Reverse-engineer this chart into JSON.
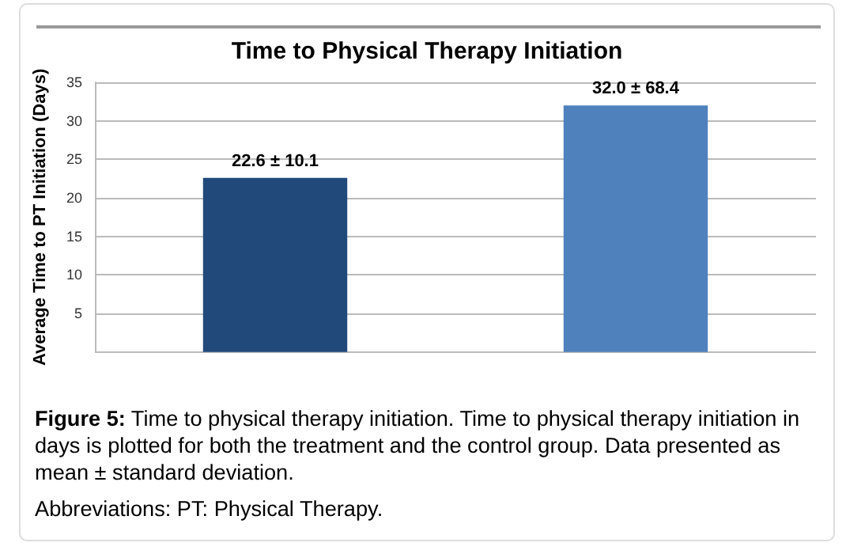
{
  "chart_data": {
    "type": "bar",
    "title": "Time to Physical Therapy Initiation",
    "ylabel": "Average Time to PT Initiation (Days)",
    "categories": [
      null,
      null
    ],
    "values": [
      22.6,
      32.0
    ],
    "colors": [
      "#214a7b",
      "#4f81bd"
    ],
    "value_labels": [
      "22.6 ± 10.1",
      "32.0 ± 68.4"
    ],
    "ylim": [
      0,
      35
    ],
    "yticks": [
      5,
      10,
      15,
      20,
      25,
      30,
      35
    ],
    "grid": "y",
    "annotations": [
      "Figure 5: Time to physical therapy initiation. Time to physical therapy initiation in days is plotted for both the treatment and the control group. Data presented as mean ± standard deviation.",
      "Abbreviations: PT: Physical Therapy."
    ]
  }
}
